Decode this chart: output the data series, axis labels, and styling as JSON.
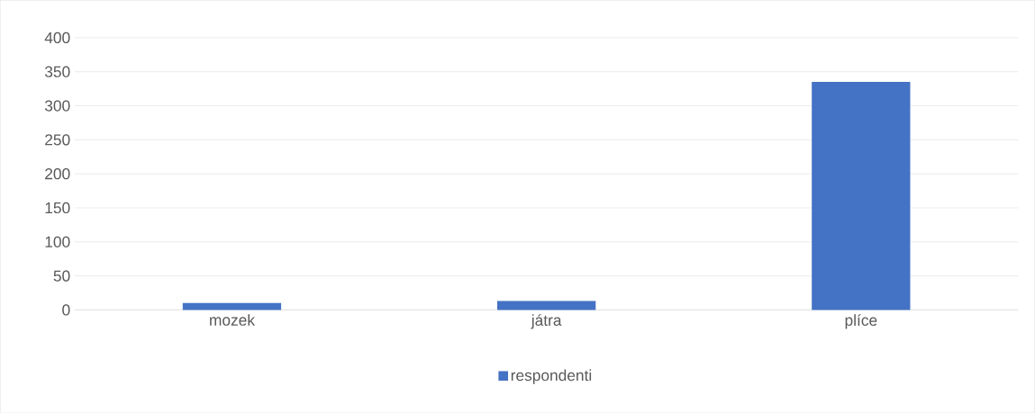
{
  "chart_data": {
    "type": "bar",
    "categories": [
      "mozek",
      "játra",
      "plíce"
    ],
    "series": [
      {
        "name": "respondenti",
        "color": "#4472c4",
        "values": [
          10,
          13,
          335
        ]
      }
    ],
    "ylim": [
      0,
      400
    ],
    "yticks": [
      0,
      50,
      100,
      150,
      200,
      250,
      300,
      350,
      400
    ],
    "grid": "y",
    "legend": "bottom"
  }
}
